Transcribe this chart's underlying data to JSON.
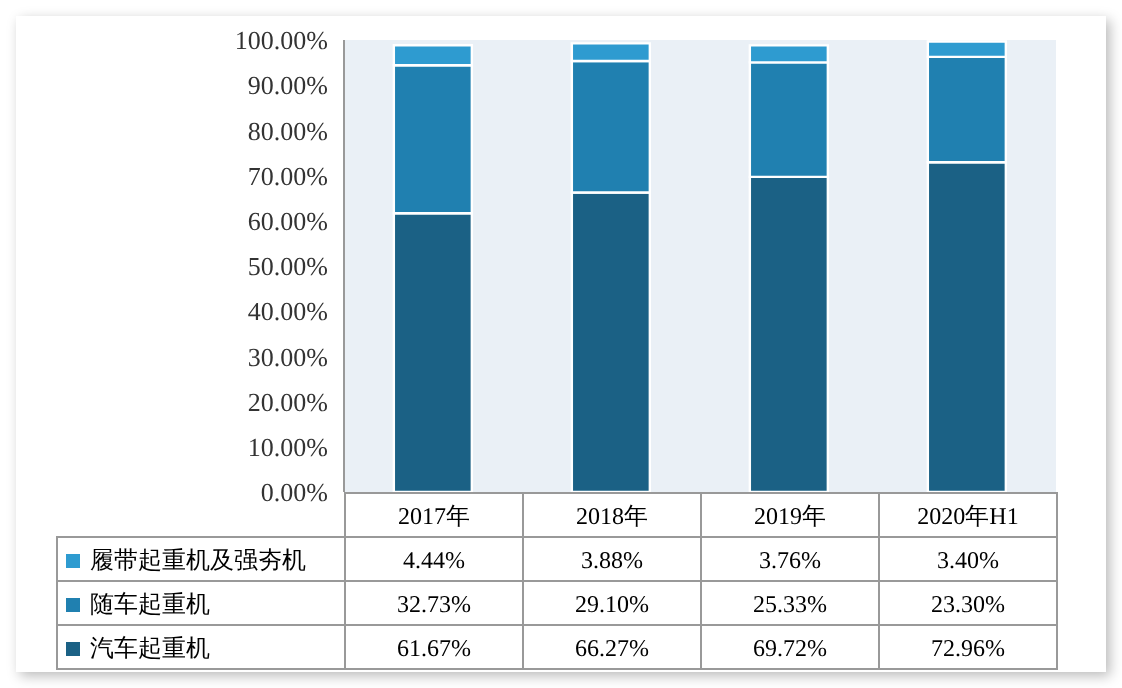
{
  "chart_data": {
    "type": "bar",
    "stacked": true,
    "categories": [
      "2017年",
      "2018年",
      "2019年",
      "2020年H1"
    ],
    "series": [
      {
        "name": "汽车起重机",
        "color": "#1b6185",
        "values": [
          61.67,
          66.27,
          69.72,
          72.96
        ],
        "value_labels": [
          "61.67%",
          "66.27%",
          "69.72%",
          "72.96%"
        ]
      },
      {
        "name": "随车起重机",
        "color": "#2080b0",
        "values": [
          32.73,
          29.1,
          25.33,
          23.3
        ],
        "value_labels": [
          "32.73%",
          "29.10%",
          "25.33%",
          "23.30%"
        ]
      },
      {
        "name": "履带起重机及强夯机",
        "color": "#2e9bd0",
        "values": [
          4.44,
          3.88,
          3.76,
          3.4
        ],
        "value_labels": [
          "4.44%",
          "3.88%",
          "3.76%",
          "3.40%"
        ]
      }
    ],
    "ylim": [
      0,
      100
    ],
    "yticks": [
      {
        "value": 0,
        "label": "0.00%"
      },
      {
        "value": 10,
        "label": "10.00%"
      },
      {
        "value": 20,
        "label": "20.00%"
      },
      {
        "value": 30,
        "label": "30.00%"
      },
      {
        "value": 40,
        "label": "40.00%"
      },
      {
        "value": 50,
        "label": "50.00%"
      },
      {
        "value": 60,
        "label": "60.00%"
      },
      {
        "value": 70,
        "label": "70.00%"
      },
      {
        "value": 80,
        "label": "80.00%"
      },
      {
        "value": 90,
        "label": "90.00%"
      },
      {
        "value": 100,
        "label": "100.00%"
      }
    ],
    "legend": "bottom",
    "grid": false
  }
}
